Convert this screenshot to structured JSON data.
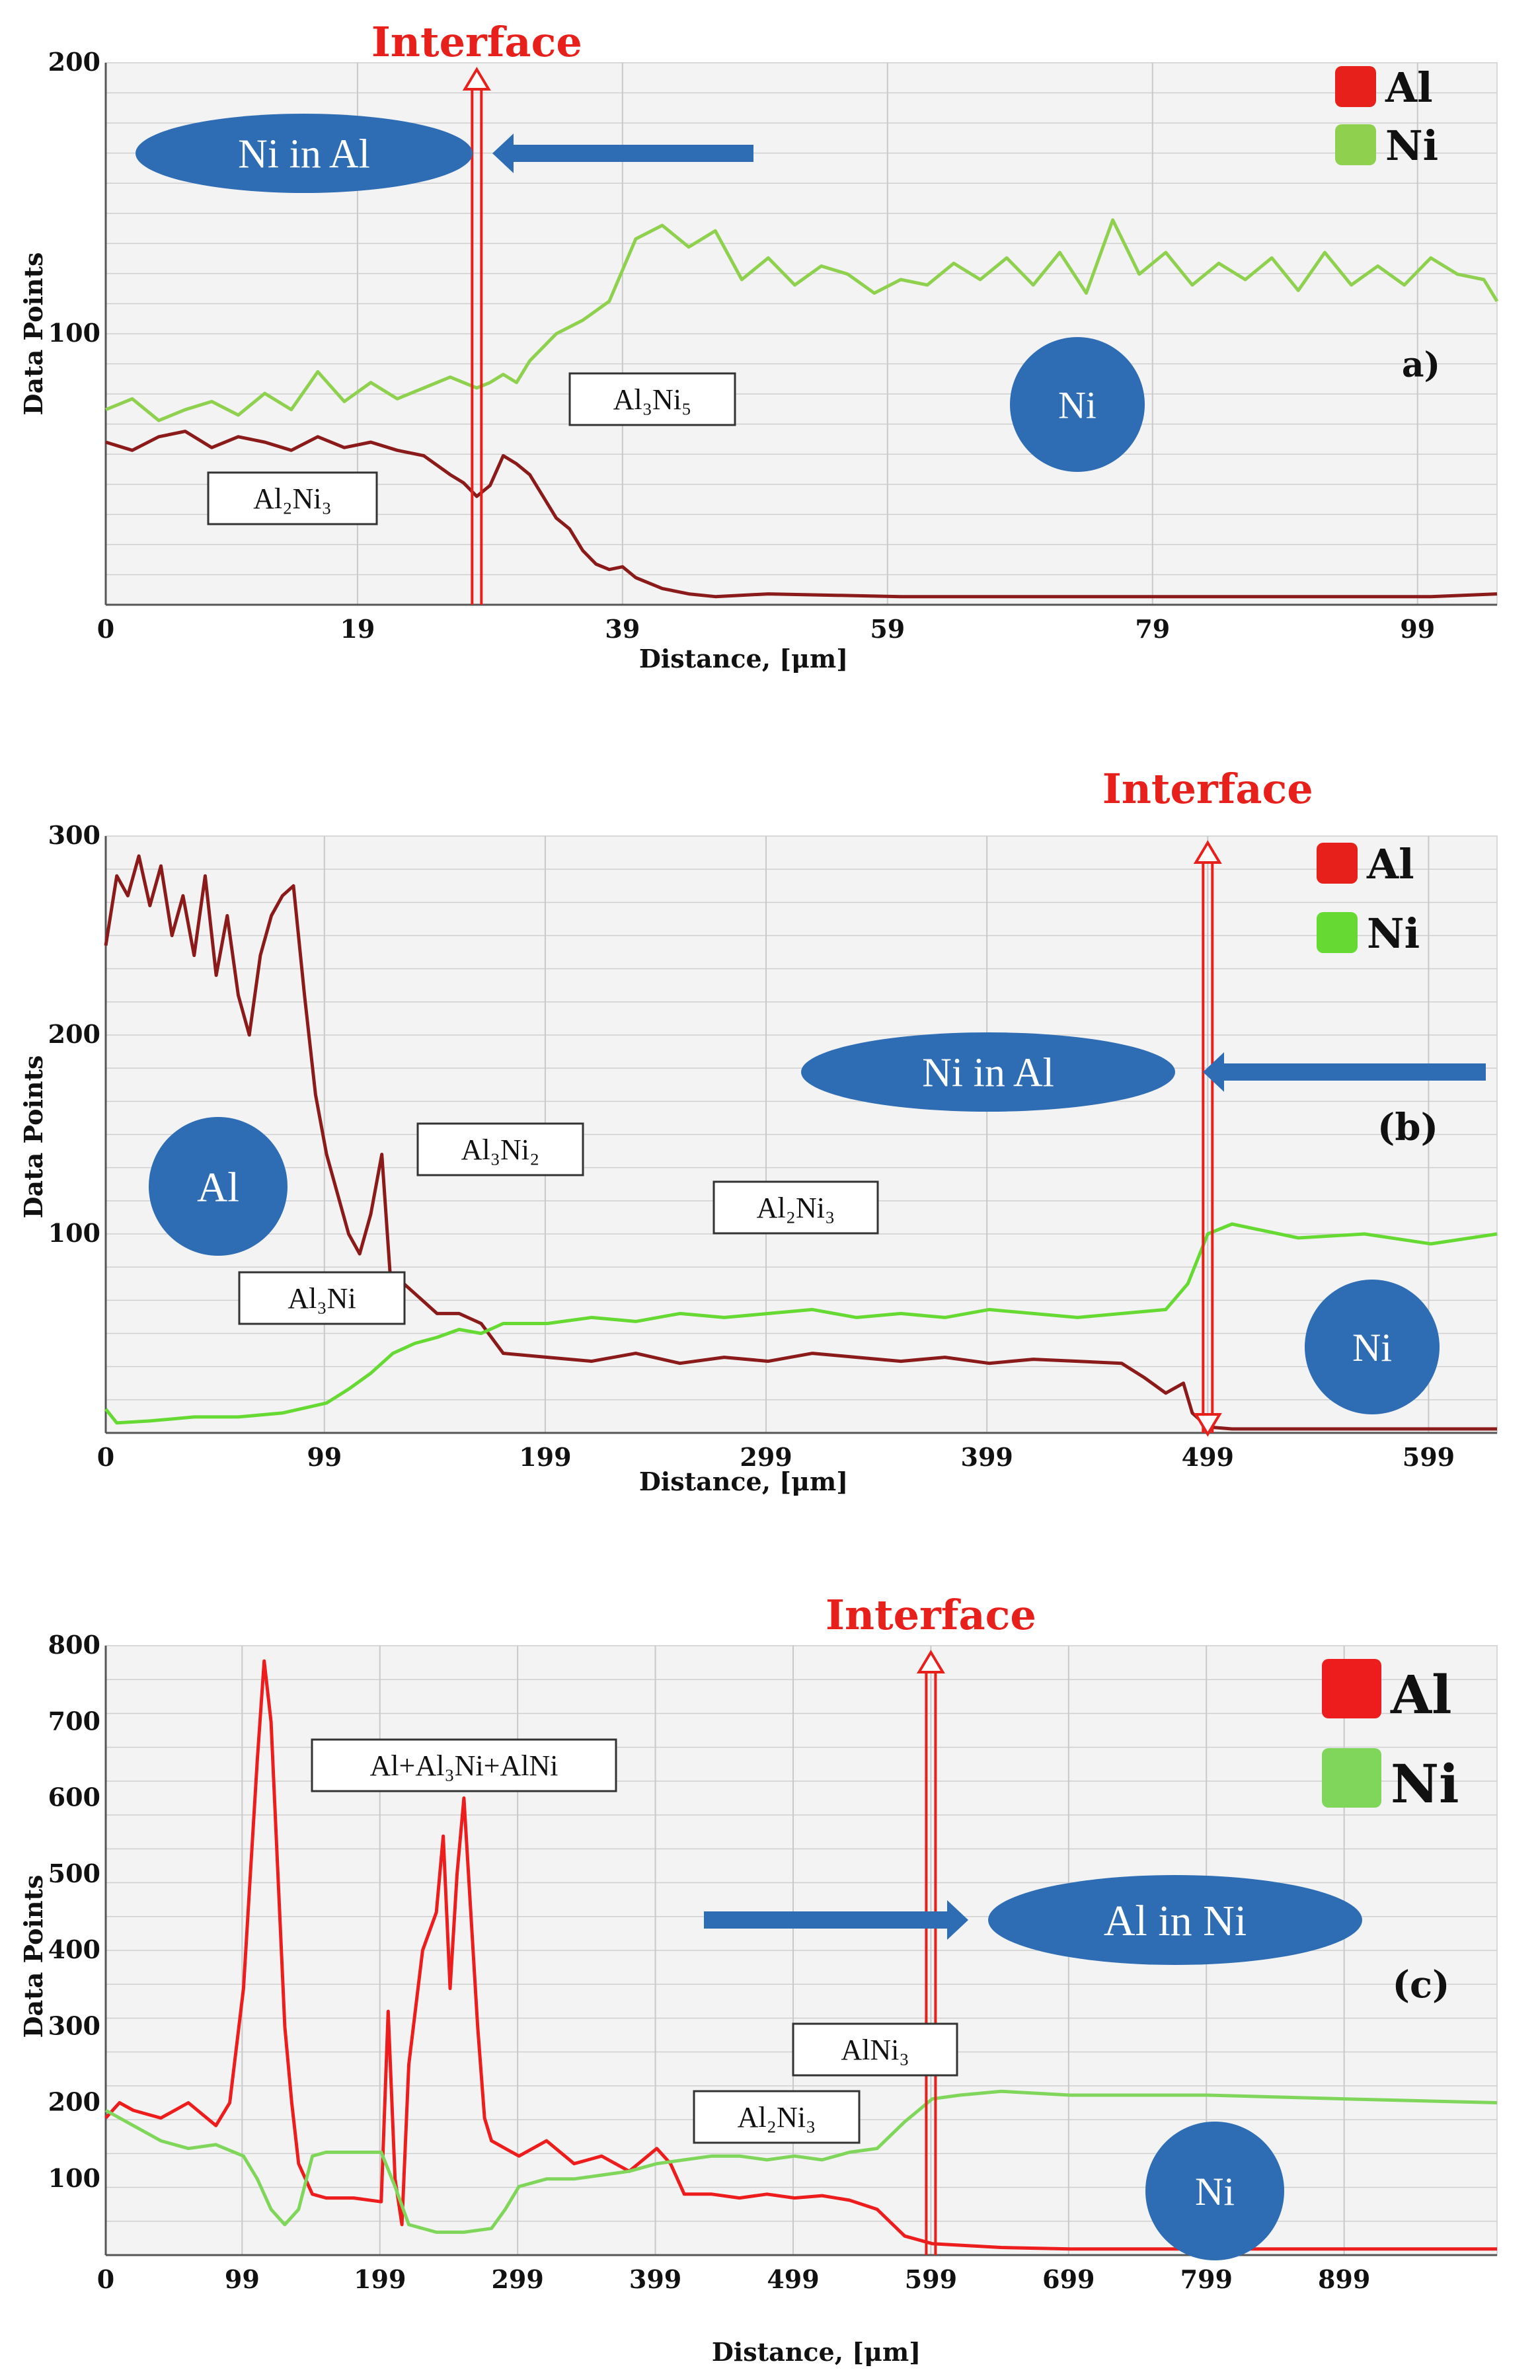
{
  "chart_data": [
    {
      "type": "line",
      "panel_label": "a)",
      "xlabel": "Distance, [μm]",
      "ylabel": "Data Points",
      "xlim": [
        0,
        105
      ],
      "ylim": [
        0,
        200
      ],
      "x_ticks": [
        0,
        19,
        39,
        59,
        79,
        99
      ],
      "y_ticks": [
        100,
        200
      ],
      "grid": true,
      "legend_position": "top-right",
      "colors": {
        "Al": "#8b1a1a",
        "Ni": "#8fd14f"
      },
      "series": [
        {
          "name": "Al",
          "x": [
            0,
            2,
            4,
            6,
            8,
            10,
            12,
            14,
            16,
            18,
            20,
            22,
            24,
            26,
            27,
            28,
            29,
            30,
            31,
            32,
            33,
            34,
            35,
            36,
            37,
            38,
            39,
            40,
            42,
            44,
            46,
            50,
            60,
            70,
            80,
            90,
            100,
            105
          ],
          "y": [
            60,
            57,
            62,
            64,
            58,
            62,
            60,
            57,
            62,
            58,
            60,
            57,
            55,
            48,
            45,
            40,
            44,
            55,
            52,
            48,
            40,
            32,
            28,
            20,
            15,
            13,
            14,
            10,
            6,
            4,
            3,
            4,
            3,
            3,
            3,
            3,
            3,
            4
          ]
        },
        {
          "name": "Ni",
          "x": [
            0,
            2,
            4,
            6,
            8,
            10,
            12,
            14,
            16,
            18,
            20,
            22,
            24,
            26,
            28,
            29,
            30,
            31,
            32,
            34,
            36,
            38,
            40,
            42,
            44,
            46,
            48,
            50,
            52,
            54,
            56,
            58,
            60,
            62,
            64,
            66,
            68,
            70,
            72,
            74,
            76,
            78,
            80,
            82,
            84,
            86,
            88,
            90,
            92,
            94,
            96,
            98,
            100,
            102,
            104,
            105
          ],
          "y": [
            72,
            76,
            68,
            72,
            75,
            70,
            78,
            72,
            86,
            75,
            82,
            76,
            80,
            84,
            80,
            82,
            85,
            82,
            90,
            100,
            105,
            112,
            135,
            140,
            132,
            138,
            120,
            128,
            118,
            125,
            122,
            115,
            120,
            118,
            126,
            120,
            128,
            118,
            130,
            115,
            142,
            122,
            130,
            118,
            126,
            120,
            128,
            116,
            130,
            118,
            125,
            118,
            128,
            122,
            120,
            112
          ]
        }
      ],
      "annotations": {
        "interface": "Interface",
        "arrow_label": "Ni in Al",
        "phases": [
          "Al₂Ni₃",
          "Al₃Ni₅"
        ],
        "region_label": "Ni"
      }
    },
    {
      "type": "line",
      "panel_label": "(b)",
      "xlabel": "Distance, [μm]",
      "ylabel": "Data Points",
      "xlim": [
        0,
        630
      ],
      "ylim": [
        0,
        300
      ],
      "x_ticks": [
        0,
        99,
        199,
        299,
        399,
        499,
        599
      ],
      "y_ticks": [
        100,
        200,
        300
      ],
      "grid": true,
      "legend_position": "top-right",
      "colors": {
        "Al": "#8b1a1a",
        "Ni": "#66d933"
      },
      "series": [
        {
          "name": "Al",
          "x": [
            0,
            5,
            10,
            15,
            20,
            25,
            30,
            35,
            40,
            45,
            50,
            55,
            60,
            65,
            70,
            75,
            80,
            85,
            90,
            95,
            100,
            105,
            110,
            115,
            120,
            125,
            130,
            135,
            140,
            150,
            160,
            170,
            180,
            200,
            220,
            240,
            260,
            280,
            300,
            320,
            340,
            360,
            380,
            400,
            420,
            440,
            460,
            470,
            480,
            488,
            492,
            499,
            510,
            540,
            570,
            600,
            630
          ],
          "y": [
            245,
            280,
            270,
            290,
            265,
            285,
            250,
            270,
            240,
            280,
            230,
            260,
            220,
            200,
            240,
            260,
            270,
            275,
            220,
            170,
            140,
            120,
            100,
            90,
            110,
            140,
            60,
            75,
            70,
            60,
            60,
            55,
            40,
            38,
            36,
            40,
            35,
            38,
            36,
            40,
            38,
            36,
            38,
            35,
            37,
            36,
            35,
            28,
            20,
            25,
            10,
            3,
            2,
            2,
            2,
            2,
            2
          ]
        },
        {
          "name": "Ni",
          "x": [
            0,
            5,
            20,
            40,
            60,
            80,
            100,
            110,
            120,
            130,
            140,
            150,
            160,
            170,
            180,
            200,
            220,
            240,
            260,
            280,
            300,
            320,
            340,
            360,
            380,
            400,
            420,
            440,
            460,
            480,
            490,
            499,
            510,
            540,
            570,
            600,
            630
          ],
          "y": [
            12,
            5,
            6,
            8,
            8,
            10,
            15,
            22,
            30,
            40,
            45,
            48,
            52,
            50,
            55,
            55,
            58,
            56,
            60,
            58,
            60,
            62,
            58,
            60,
            58,
            62,
            60,
            58,
            60,
            62,
            75,
            100,
            105,
            98,
            100,
            95,
            100
          ]
        }
      ],
      "annotations": {
        "interface": "Interface",
        "arrow_label": "Ni in Al",
        "phases": [
          "Al₃Ni₂",
          "Al₂Ni₃",
          "Al₃Ni"
        ],
        "region_labels": [
          "Al",
          "Ni"
        ]
      }
    },
    {
      "type": "line",
      "panel_label": "(c)",
      "xlabel": "Distance, [μm]",
      "ylabel": "Data Points",
      "xlim": [
        0,
        1010
      ],
      "ylim": [
        0,
        800
      ],
      "x_ticks": [
        0,
        99,
        199,
        299,
        399,
        499,
        599,
        699,
        799,
        899
      ],
      "y_ticks": [
        100,
        200,
        300,
        400,
        500,
        600,
        700,
        800
      ],
      "grid": true,
      "legend_position": "top-right",
      "colors": {
        "Al": "#ee1d1d",
        "Ni": "#7fd65a"
      },
      "series": [
        {
          "name": "Al",
          "x": [
            0,
            10,
            20,
            40,
            60,
            80,
            90,
            100,
            105,
            110,
            115,
            120,
            125,
            130,
            135,
            140,
            150,
            160,
            180,
            200,
            205,
            210,
            215,
            220,
            230,
            240,
            245,
            250,
            255,
            260,
            265,
            270,
            275,
            280,
            290,
            300,
            320,
            340,
            360,
            380,
            400,
            410,
            420,
            440,
            460,
            480,
            500,
            520,
            540,
            560,
            580,
            600,
            650,
            700,
            800,
            900,
            1010
          ],
          "y": [
            180,
            200,
            190,
            180,
            200,
            170,
            200,
            350,
            500,
            650,
            780,
            700,
            500,
            300,
            200,
            120,
            80,
            75,
            75,
            70,
            320,
            100,
            40,
            250,
            400,
            450,
            550,
            350,
            500,
            600,
            450,
            300,
            180,
            150,
            140,
            130,
            150,
            120,
            130,
            110,
            140,
            120,
            80,
            80,
            75,
            80,
            75,
            78,
            72,
            60,
            25,
            15,
            10,
            8,
            8,
            8,
            8
          ]
        },
        {
          "name": "Ni",
          "x": [
            0,
            20,
            40,
            60,
            80,
            100,
            110,
            120,
            130,
            140,
            150,
            160,
            180,
            200,
            210,
            220,
            240,
            260,
            280,
            290,
            300,
            320,
            340,
            360,
            380,
            400,
            420,
            440,
            460,
            480,
            500,
            520,
            540,
            560,
            580,
            600,
            620,
            650,
            700,
            800,
            900,
            1010
          ],
          "y": [
            190,
            170,
            150,
            140,
            145,
            130,
            100,
            60,
            40,
            60,
            130,
            135,
            135,
            135,
            90,
            40,
            30,
            30,
            35,
            60,
            90,
            100,
            100,
            105,
            110,
            120,
            125,
            130,
            130,
            125,
            130,
            125,
            135,
            140,
            175,
            205,
            210,
            215,
            210,
            210,
            205,
            200
          ]
        }
      ],
      "annotations": {
        "interface": "Interface",
        "arrow_label": "Al in Ni",
        "phases": [
          "Al+Al₃Ni+AlNi",
          "AlNi₃",
          "Al₂Ni₃"
        ],
        "region_label": "Ni"
      }
    }
  ]
}
